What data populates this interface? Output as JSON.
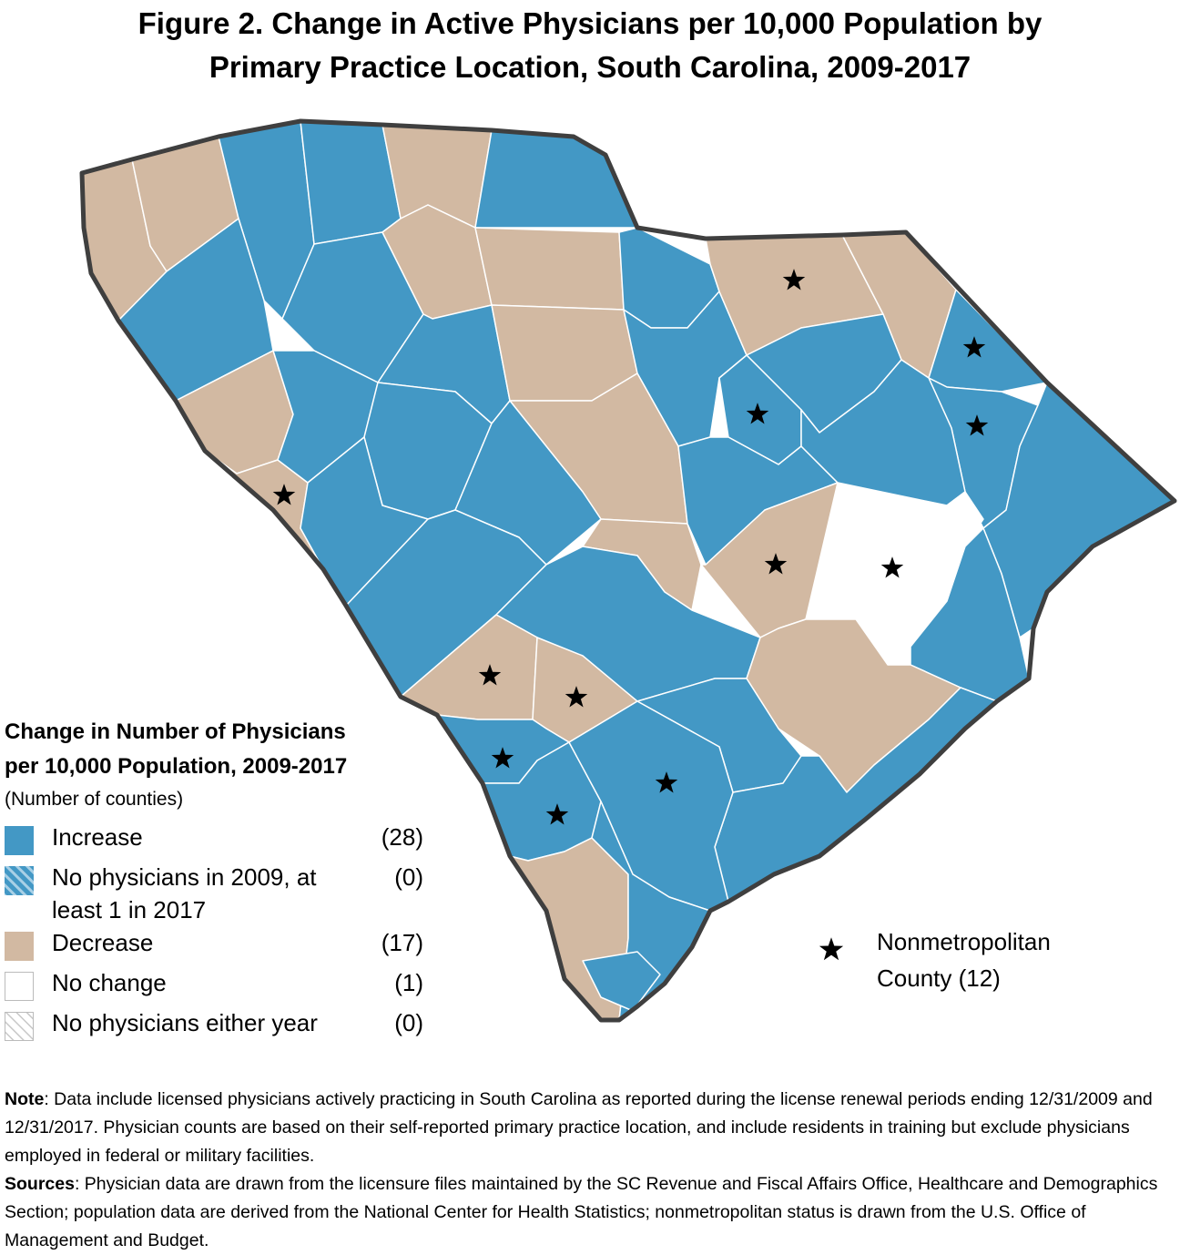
{
  "title": {
    "line1": "Figure 2. Change in Active Physicians per 10,000 Population by",
    "line2": "Primary Practice Location, South Carolina, 2009-2017"
  },
  "colors": {
    "increase": "#4398c5",
    "decrease": "#d2b9a2",
    "no_change": "#ffffff",
    "outline": "#3f3f3f",
    "county_border": "#ffffff"
  },
  "legend": {
    "title_line1": "Change in Number of Physicians",
    "title_line2": "per 10,000 Population, 2009-2017",
    "subtitle": "(Number of counties)",
    "items": [
      {
        "label": "Increase",
        "count": "(28)"
      },
      {
        "label": "No physicians in 2009, at least 1 in 2017",
        "count": "(0)"
      },
      {
        "label": "Decrease",
        "count": "(17)"
      },
      {
        "label": "No change",
        "count": "(1)"
      },
      {
        "label": "No physicians either year",
        "count": "(0)"
      }
    ],
    "nonmetro_line1": "Nonmetropolitan",
    "nonmetro_line2": "County (12)"
  },
  "notes": {
    "note_label": "Note",
    "note_text": ": Data include licensed physicians actively practicing in South Carolina as reported during the license renewal periods ending 12/31/2009 and 12/31/2017. Physician counts are based on their self-reported primary practice location, and include residents in training but exclude physicians employed in federal or military facilities.",
    "sources_label": "Sources",
    "sources_text": ": Physician data are drawn from the licensure files maintained by the SC Revenue and Fiscal Affairs Office, Healthcare and Demographics Section; population data are derived from the National Center for Health Statistics; nonmetropolitan status is drawn from the U.S. Office of Management and Budget."
  }
}
